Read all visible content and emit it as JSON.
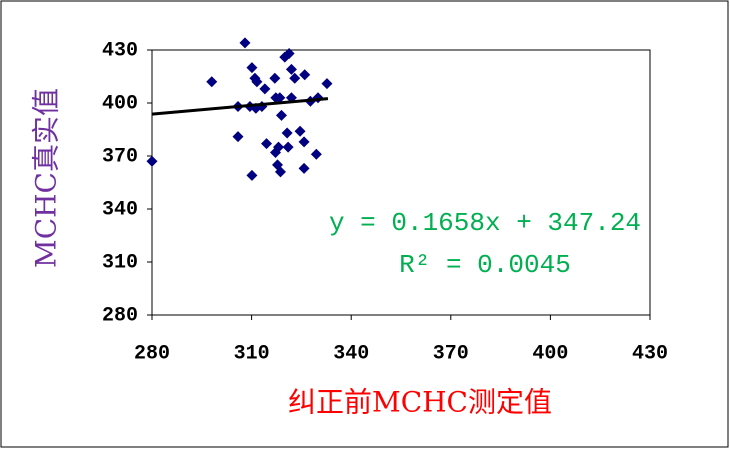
{
  "chart_data": {
    "type": "scatter",
    "x_label": "纠正前MCHC测定值",
    "y_label": "MCHC真实值",
    "annotations": [
      "y = 0.1658x + 347.24",
      "R² = 0.0045"
    ],
    "xlim": [
      280,
      430
    ],
    "xticks": [
      280,
      310,
      340,
      370,
      400,
      430
    ],
    "ylim": [
      280,
      430
    ],
    "yticks": [
      280,
      310,
      340,
      370,
      400,
      430
    ],
    "series": [
      {
        "color": "#000080",
        "x": [
          280,
          298,
          308,
          310.1,
          311,
          311.6,
          305.9,
          309.5,
          311.3,
          313.1,
          305.9,
          310.1,
          314,
          317,
          317.3,
          318.5,
          320,
          321.3,
          322,
          323,
          322,
          326,
          327.7,
          330,
          332.7,
          319,
          314.5,
          317.2,
          318.1,
          321,
          320.7,
          324.6,
          325.8,
          329.5,
          317.8,
          318.7,
          325.8
        ],
        "values": [
          367,
          412,
          434,
          420,
          414,
          412,
          398,
          398,
          397,
          398,
          381,
          359,
          408,
          414,
          403,
          403,
          426,
          428,
          419,
          414,
          403,
          416,
          401,
          403,
          411,
          393,
          377,
          372,
          375,
          375,
          383,
          384,
          378,
          371,
          365,
          361,
          363
        ]
      }
    ],
    "trendline": {
      "color": "#000000",
      "x": [
        280,
        333
      ],
      "values": [
        393.7,
        402.5
      ]
    }
  }
}
